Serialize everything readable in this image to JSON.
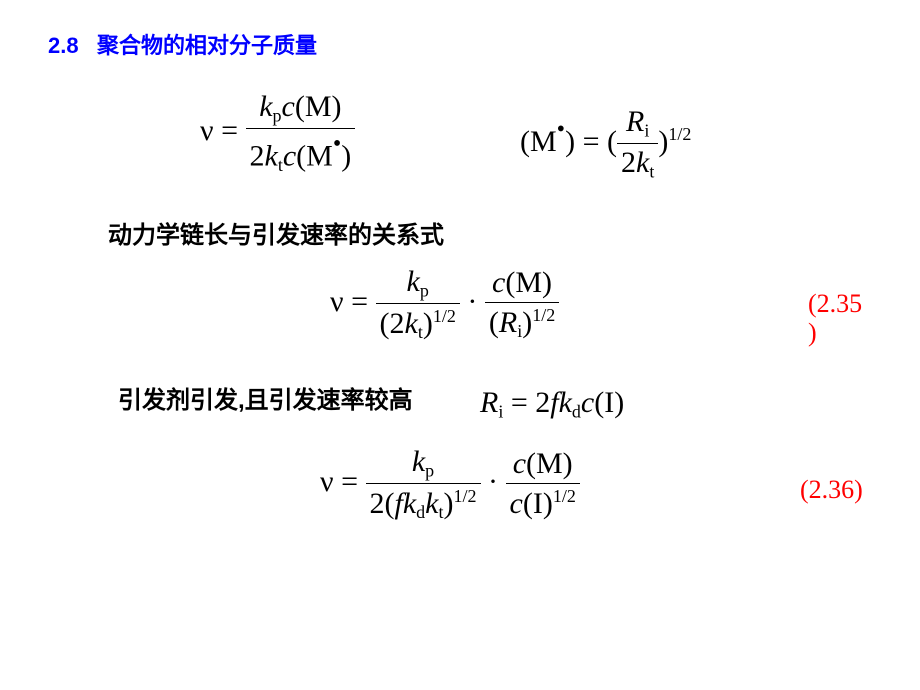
{
  "header": {
    "section": "2.8",
    "title": "聚合物的相对分子质量"
  },
  "equation1": {
    "lhs_symbol": "ν",
    "eq": " = ",
    "num": "k<sub>p</sub>c(M)",
    "den": "2k<sub>t</sub>c(M·)"
  },
  "equation2": {
    "lhs": "(M·) = (",
    "num": "R<sub>i</sub>",
    "den": "2k<sub>t</sub>",
    "rhs_sup": "1/2",
    "after": ")"
  },
  "text1": "动力学链长与引发速率的关系式",
  "equation3": {
    "lhs_symbol": "ν",
    "eq": " = ",
    "num1": "k<sub>p</sub>",
    "den1": "(2k<sub>t</sub>)<sup>1/2</sup>",
    "dot": "·",
    "num2": "c(M)",
    "den2": "(R<sub>i</sub>)<sup>1/2</sup>"
  },
  "eqnum1_a": "(2.35",
  "eqnum1_b": ")",
  "text2": "引发剂引发,且引发速率较高",
  "equation4": "R<sub>i</sub> = 2fk<sub>d</sub>c(I)",
  "equation5": {
    "lhs_symbol": "ν",
    "eq": " = ",
    "num1": "k<sub>p</sub>",
    "den1": "2(fk<sub>d</sub>k<sub>t</sub>)<sup>1/2</sup>",
    "dot": "·",
    "num2": "c(M)",
    "den2": "c(I)<sup>1/2</sup>"
  },
  "eqnum2": "(2.36)",
  "colors": {
    "header": "#0000ff",
    "eqnum": "#ff0000",
    "text": "#000000",
    "bg": "#ffffff"
  },
  "fonts": {
    "header_size": 22,
    "body_size": 24,
    "eq_size": 30
  }
}
